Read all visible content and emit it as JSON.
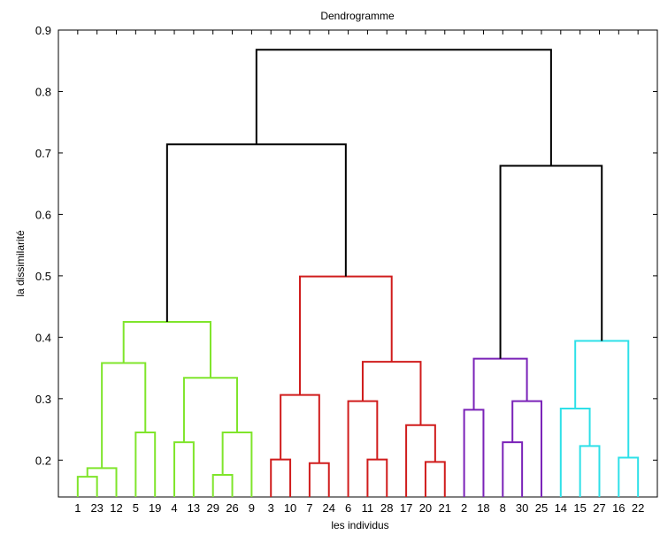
{
  "chart_data": {
    "type": "dendrogram",
    "title": "Dendrogramme",
    "xlabel": "les individus",
    "ylabel": "la dissimilarité",
    "ylim": [
      0.14,
      0.9
    ],
    "yticks": [
      0.2,
      0.3,
      0.4,
      0.5,
      0.6,
      0.7,
      0.8,
      0.9
    ],
    "ytick_labels": [
      "0.2",
      "0.3",
      "0.4",
      "0.5",
      "0.6",
      "0.7",
      "0.8",
      "0.9"
    ],
    "leaf_order": [
      1,
      23,
      12,
      5,
      19,
      4,
      13,
      29,
      26,
      9,
      3,
      10,
      7,
      24,
      6,
      11,
      28,
      17,
      20,
      21,
      2,
      18,
      8,
      30,
      25,
      14,
      15,
      27,
      16,
      22
    ],
    "leaf_labels": [
      "1",
      "23",
      "12",
      "5",
      "19",
      "4",
      "13",
      "29",
      "26",
      "9",
      "3",
      "10",
      "7",
      "24",
      "6",
      "11",
      "28",
      "17",
      "20",
      "21",
      "2",
      "18",
      "8",
      "30",
      "25",
      "14",
      "15",
      "27",
      "16",
      "22"
    ],
    "cluster_colors": {
      "green": "#7fe52b",
      "red": "#d01c1c",
      "purple": "#7a22b8",
      "cyan": "#2ee0e8",
      "black": "#000000"
    },
    "merges": [
      {
        "a": "1",
        "b": "23",
        "height": 0.173,
        "color": "green"
      },
      {
        "a": "m0",
        "b": "12",
        "height": 0.187,
        "color": "green"
      },
      {
        "a": "5",
        "b": "19",
        "height": 0.245,
        "color": "green"
      },
      {
        "a": "m1",
        "b": "m2",
        "height": 0.358,
        "color": "green"
      },
      {
        "a": "29",
        "b": "26",
        "height": 0.176,
        "color": "green"
      },
      {
        "a": "4",
        "b": "13",
        "height": 0.229,
        "color": "green"
      },
      {
        "a": "m4",
        "b": "9",
        "height": 0.245,
        "color": "green"
      },
      {
        "a": "m5",
        "b": "m6",
        "height": 0.334,
        "color": "green"
      },
      {
        "a": "m3",
        "b": "m7",
        "height": 0.425,
        "color": "green"
      },
      {
        "a": "3",
        "b": "10",
        "height": 0.201,
        "color": "red"
      },
      {
        "a": "7",
        "b": "24",
        "height": 0.195,
        "color": "red"
      },
      {
        "a": "m9",
        "b": "m10",
        "height": 0.306,
        "color": "red"
      },
      {
        "a": "11",
        "b": "28",
        "height": 0.201,
        "color": "red"
      },
      {
        "a": "6",
        "b": "m12",
        "height": 0.296,
        "color": "red"
      },
      {
        "a": "20",
        "b": "21",
        "height": 0.197,
        "color": "red"
      },
      {
        "a": "17",
        "b": "m14",
        "height": 0.257,
        "color": "red"
      },
      {
        "a": "m13",
        "b": "m15",
        "height": 0.36,
        "color": "red"
      },
      {
        "a": "m11",
        "b": "m16",
        "height": 0.499,
        "color": "red"
      },
      {
        "a": "m8",
        "b": "m17",
        "height": 0.714,
        "color": "black"
      },
      {
        "a": "2",
        "b": "18",
        "height": 0.282,
        "color": "purple"
      },
      {
        "a": "8",
        "b": "30",
        "height": 0.229,
        "color": "purple"
      },
      {
        "a": "m20",
        "b": "25",
        "height": 0.296,
        "color": "purple"
      },
      {
        "a": "m19",
        "b": "m21",
        "height": 0.365,
        "color": "purple"
      },
      {
        "a": "15",
        "b": "27",
        "height": 0.223,
        "color": "cyan"
      },
      {
        "a": "14",
        "b": "m23",
        "height": 0.284,
        "color": "cyan"
      },
      {
        "a": "16",
        "b": "22",
        "height": 0.204,
        "color": "cyan"
      },
      {
        "a": "m24",
        "b": "m25",
        "height": 0.394,
        "color": "cyan"
      },
      {
        "a": "m22",
        "b": "m26",
        "height": 0.679,
        "color": "black"
      },
      {
        "a": "m18",
        "b": "m27",
        "height": 0.868,
        "color": "black"
      }
    ],
    "grid": false,
    "legend": "none"
  }
}
